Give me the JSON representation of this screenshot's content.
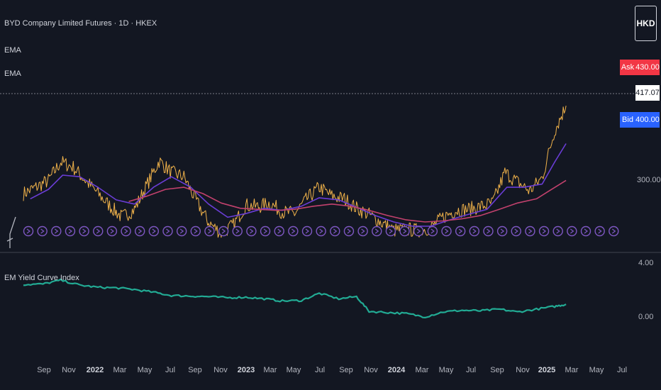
{
  "header": {
    "symbol_title": "BYD Company Limited Futures · 1D · HKEX",
    "indicator_1": "EMA",
    "indicator_2": "EMA",
    "currency": "HKD"
  },
  "price_tags": {
    "ask_label": "Ask",
    "ask_value": "430.00",
    "last_value": "417.07",
    "bid_label": "Bid",
    "bid_value": "400.00"
  },
  "main_axis": {
    "labels": [
      "300.00"
    ]
  },
  "sub_pane": {
    "title": "EM Yield Curve Index",
    "axis_labels": [
      "4.00",
      "0.00"
    ]
  },
  "time_axis": {
    "labels": [
      {
        "text": "Sep",
        "bold": false
      },
      {
        "text": "Nov",
        "bold": false
      },
      {
        "text": "2022",
        "bold": true
      },
      {
        "text": "Mar",
        "bold": false
      },
      {
        "text": "May",
        "bold": false
      },
      {
        "text": "Jul",
        "bold": false
      },
      {
        "text": "Sep",
        "bold": false
      },
      {
        "text": "Nov",
        "bold": false
      },
      {
        "text": "2023",
        "bold": true
      },
      {
        "text": "Mar",
        "bold": false
      },
      {
        "text": "May",
        "bold": false
      },
      {
        "text": "Jul",
        "bold": false
      },
      {
        "text": "Sep",
        "bold": false
      },
      {
        "text": "Nov",
        "bold": false
      },
      {
        "text": "2024",
        "bold": true
      },
      {
        "text": "Mar",
        "bold": false
      },
      {
        "text": "May",
        "bold": false
      },
      {
        "text": "Jul",
        "bold": false
      },
      {
        "text": "Sep",
        "bold": false
      },
      {
        "text": "Nov",
        "bold": false
      },
      {
        "text": "2025",
        "bold": true
      },
      {
        "text": "Mar",
        "bold": false
      },
      {
        "text": "May",
        "bold": false
      },
      {
        "text": "Jul",
        "bold": false
      }
    ]
  },
  "colors": {
    "background": "#131722",
    "price": "#f0b24a",
    "ema_fast": "#6a3dd6",
    "ema_slow": "#c2416d",
    "yield_line": "#22ab94",
    "marker": "#7e57c2",
    "grid_line": "#787b86"
  },
  "chart_data": [
    {
      "type": "line",
      "ylim": [
        130,
        440
      ],
      "x_range": [
        "2021-07-15",
        "2025-07-31"
      ],
      "series": [
        {
          "values": [
            [
              "2021-07-15",
              250
            ],
            [
              "2021-08-15",
              262
            ],
            [
              "2021-09-15",
              275
            ],
            [
              "2021-10-15",
              310
            ],
            [
              "2021-11-15",
              300
            ],
            [
              "2021-12-15",
              275
            ],
            [
              "2022-01-15",
              250
            ],
            [
              "2022-02-15",
              225
            ],
            [
              "2022-03-15",
              205
            ],
            [
              "2022-04-15",
              220
            ],
            [
              "2022-05-15",
              265
            ],
            [
              "2022-06-15",
              312
            ],
            [
              "2022-07-15",
              290
            ],
            [
              "2022-08-15",
              282
            ],
            [
              "2022-09-15",
              235
            ],
            [
              "2022-10-15",
              195
            ],
            [
              "2022-11-15",
              175
            ],
            [
              "2022-12-15",
              190
            ],
            [
              "2023-01-15",
              228
            ],
            [
              "2023-02-15",
              225
            ],
            [
              "2023-03-15",
              232
            ],
            [
              "2023-04-15",
              215
            ],
            [
              "2023-05-15",
              212
            ],
            [
              "2023-06-15",
              240
            ],
            [
              "2023-07-15",
              262
            ],
            [
              "2023-08-15",
              245
            ],
            [
              "2023-09-15",
              240
            ],
            [
              "2023-10-15",
              222
            ],
            [
              "2023-11-15",
              210
            ],
            [
              "2023-12-15",
              195
            ],
            [
              "2024-01-15",
              180
            ],
            [
              "2024-02-15",
              182
            ],
            [
              "2024-03-15",
              180
            ],
            [
              "2024-04-15",
              185
            ],
            [
              "2024-05-15",
              205
            ],
            [
              "2024-06-15",
              218
            ],
            [
              "2024-07-15",
              220
            ],
            [
              "2024-08-15",
              225
            ],
            [
              "2024-09-15",
              232
            ],
            [
              "2024-10-15",
              290
            ],
            [
              "2024-11-15",
              272
            ],
            [
              "2024-12-15",
              255
            ],
            [
              "2025-01-15",
              280
            ],
            [
              "2025-02-15",
              370
            ],
            [
              "2025-03-15",
              417
            ]
          ]
        },
        {
          "values": [
            [
              "2021-08-01",
              240
            ],
            [
              "2021-09-15",
              258
            ],
            [
              "2021-10-20",
              285
            ],
            [
              "2021-12-01",
              282
            ],
            [
              "2022-01-15",
              262
            ],
            [
              "2022-03-01",
              238
            ],
            [
              "2022-04-15",
              230
            ],
            [
              "2022-06-01",
              262
            ],
            [
              "2022-07-15",
              282
            ],
            [
              "2022-09-01",
              262
            ],
            [
              "2022-10-15",
              230
            ],
            [
              "2022-12-01",
              205
            ],
            [
              "2023-01-15",
              212
            ],
            [
              "2023-03-01",
              222
            ],
            [
              "2023-04-15",
              218
            ],
            [
              "2023-06-01",
              226
            ],
            [
              "2023-07-15",
              242
            ],
            [
              "2023-09-01",
              238
            ],
            [
              "2023-10-15",
              224
            ],
            [
              "2023-12-01",
              208
            ],
            [
              "2024-01-15",
              196
            ],
            [
              "2024-03-01",
              188
            ],
            [
              "2024-04-15",
              188
            ],
            [
              "2024-06-01",
              200
            ],
            [
              "2024-07-15",
              210
            ],
            [
              "2024-09-01",
              220
            ],
            [
              "2024-10-20",
              262
            ],
            [
              "2024-12-01",
              262
            ],
            [
              "2025-01-15",
              268
            ],
            [
              "2025-02-15",
              310
            ],
            [
              "2025-03-15",
              345
            ]
          ]
        },
        {
          "values": [
            [
              "2022-04-01",
              235
            ],
            [
              "2022-05-15",
              245
            ],
            [
              "2022-07-01",
              258
            ],
            [
              "2022-08-15",
              262
            ],
            [
              "2022-10-01",
              250
            ],
            [
              "2022-11-15",
              232
            ],
            [
              "2023-01-01",
              222
            ],
            [
              "2023-02-15",
              220
            ],
            [
              "2023-04-01",
              218
            ],
            [
              "2023-05-15",
              220
            ],
            [
              "2023-07-01",
              226
            ],
            [
              "2023-08-15",
              230
            ],
            [
              "2023-10-01",
              226
            ],
            [
              "2023-11-15",
              218
            ],
            [
              "2024-01-01",
              208
            ],
            [
              "2024-02-15",
              200
            ],
            [
              "2024-04-01",
              196
            ],
            [
              "2024-05-15",
              198
            ],
            [
              "2024-07-01",
              202
            ],
            [
              "2024-08-15",
              208
            ],
            [
              "2024-10-01",
              220
            ],
            [
              "2024-11-15",
              232
            ],
            [
              "2025-01-01",
              240
            ],
            [
              "2025-02-01",
              255
            ],
            [
              "2025-03-15",
              275
            ]
          ]
        }
      ]
    },
    {
      "type": "line",
      "title": "EM Yield Curve Index",
      "ylim": [
        -1.2,
        4.5
      ],
      "series": [
        {
          "values": [
            [
              "2021-07-15",
              2.6
            ],
            [
              "2021-09-01",
              2.65
            ],
            [
              "2021-10-15",
              3.0
            ],
            [
              "2021-12-01",
              2.55
            ],
            [
              "2022-01-15",
              2.35
            ],
            [
              "2022-03-01",
              2.3
            ],
            [
              "2022-04-15",
              2.15
            ],
            [
              "2022-06-01",
              1.9
            ],
            [
              "2022-07-15",
              1.6
            ],
            [
              "2022-09-01",
              1.55
            ],
            [
              "2022-10-15",
              1.5
            ],
            [
              "2022-12-01",
              1.4
            ],
            [
              "2023-01-15",
              1.45
            ],
            [
              "2023-03-01",
              1.3
            ],
            [
              "2023-04-15",
              1.1
            ],
            [
              "2023-06-01",
              1.15
            ],
            [
              "2023-07-15",
              1.8
            ],
            [
              "2023-09-01",
              1.3
            ],
            [
              "2023-10-15",
              1.5
            ],
            [
              "2023-11-15",
              0.15
            ],
            [
              "2024-01-01",
              0.05
            ],
            [
              "2024-02-15",
              -0.05
            ],
            [
              "2024-04-01",
              -0.35
            ],
            [
              "2024-05-15",
              0.1
            ],
            [
              "2024-07-01",
              0.25
            ],
            [
              "2024-08-15",
              0.2
            ],
            [
              "2024-10-01",
              0.35
            ],
            [
              "2024-11-15",
              0.1
            ],
            [
              "2025-01-01",
              0.35
            ],
            [
              "2025-02-15",
              0.6
            ],
            [
              "2025-03-15",
              0.8
            ]
          ]
        }
      ]
    }
  ]
}
